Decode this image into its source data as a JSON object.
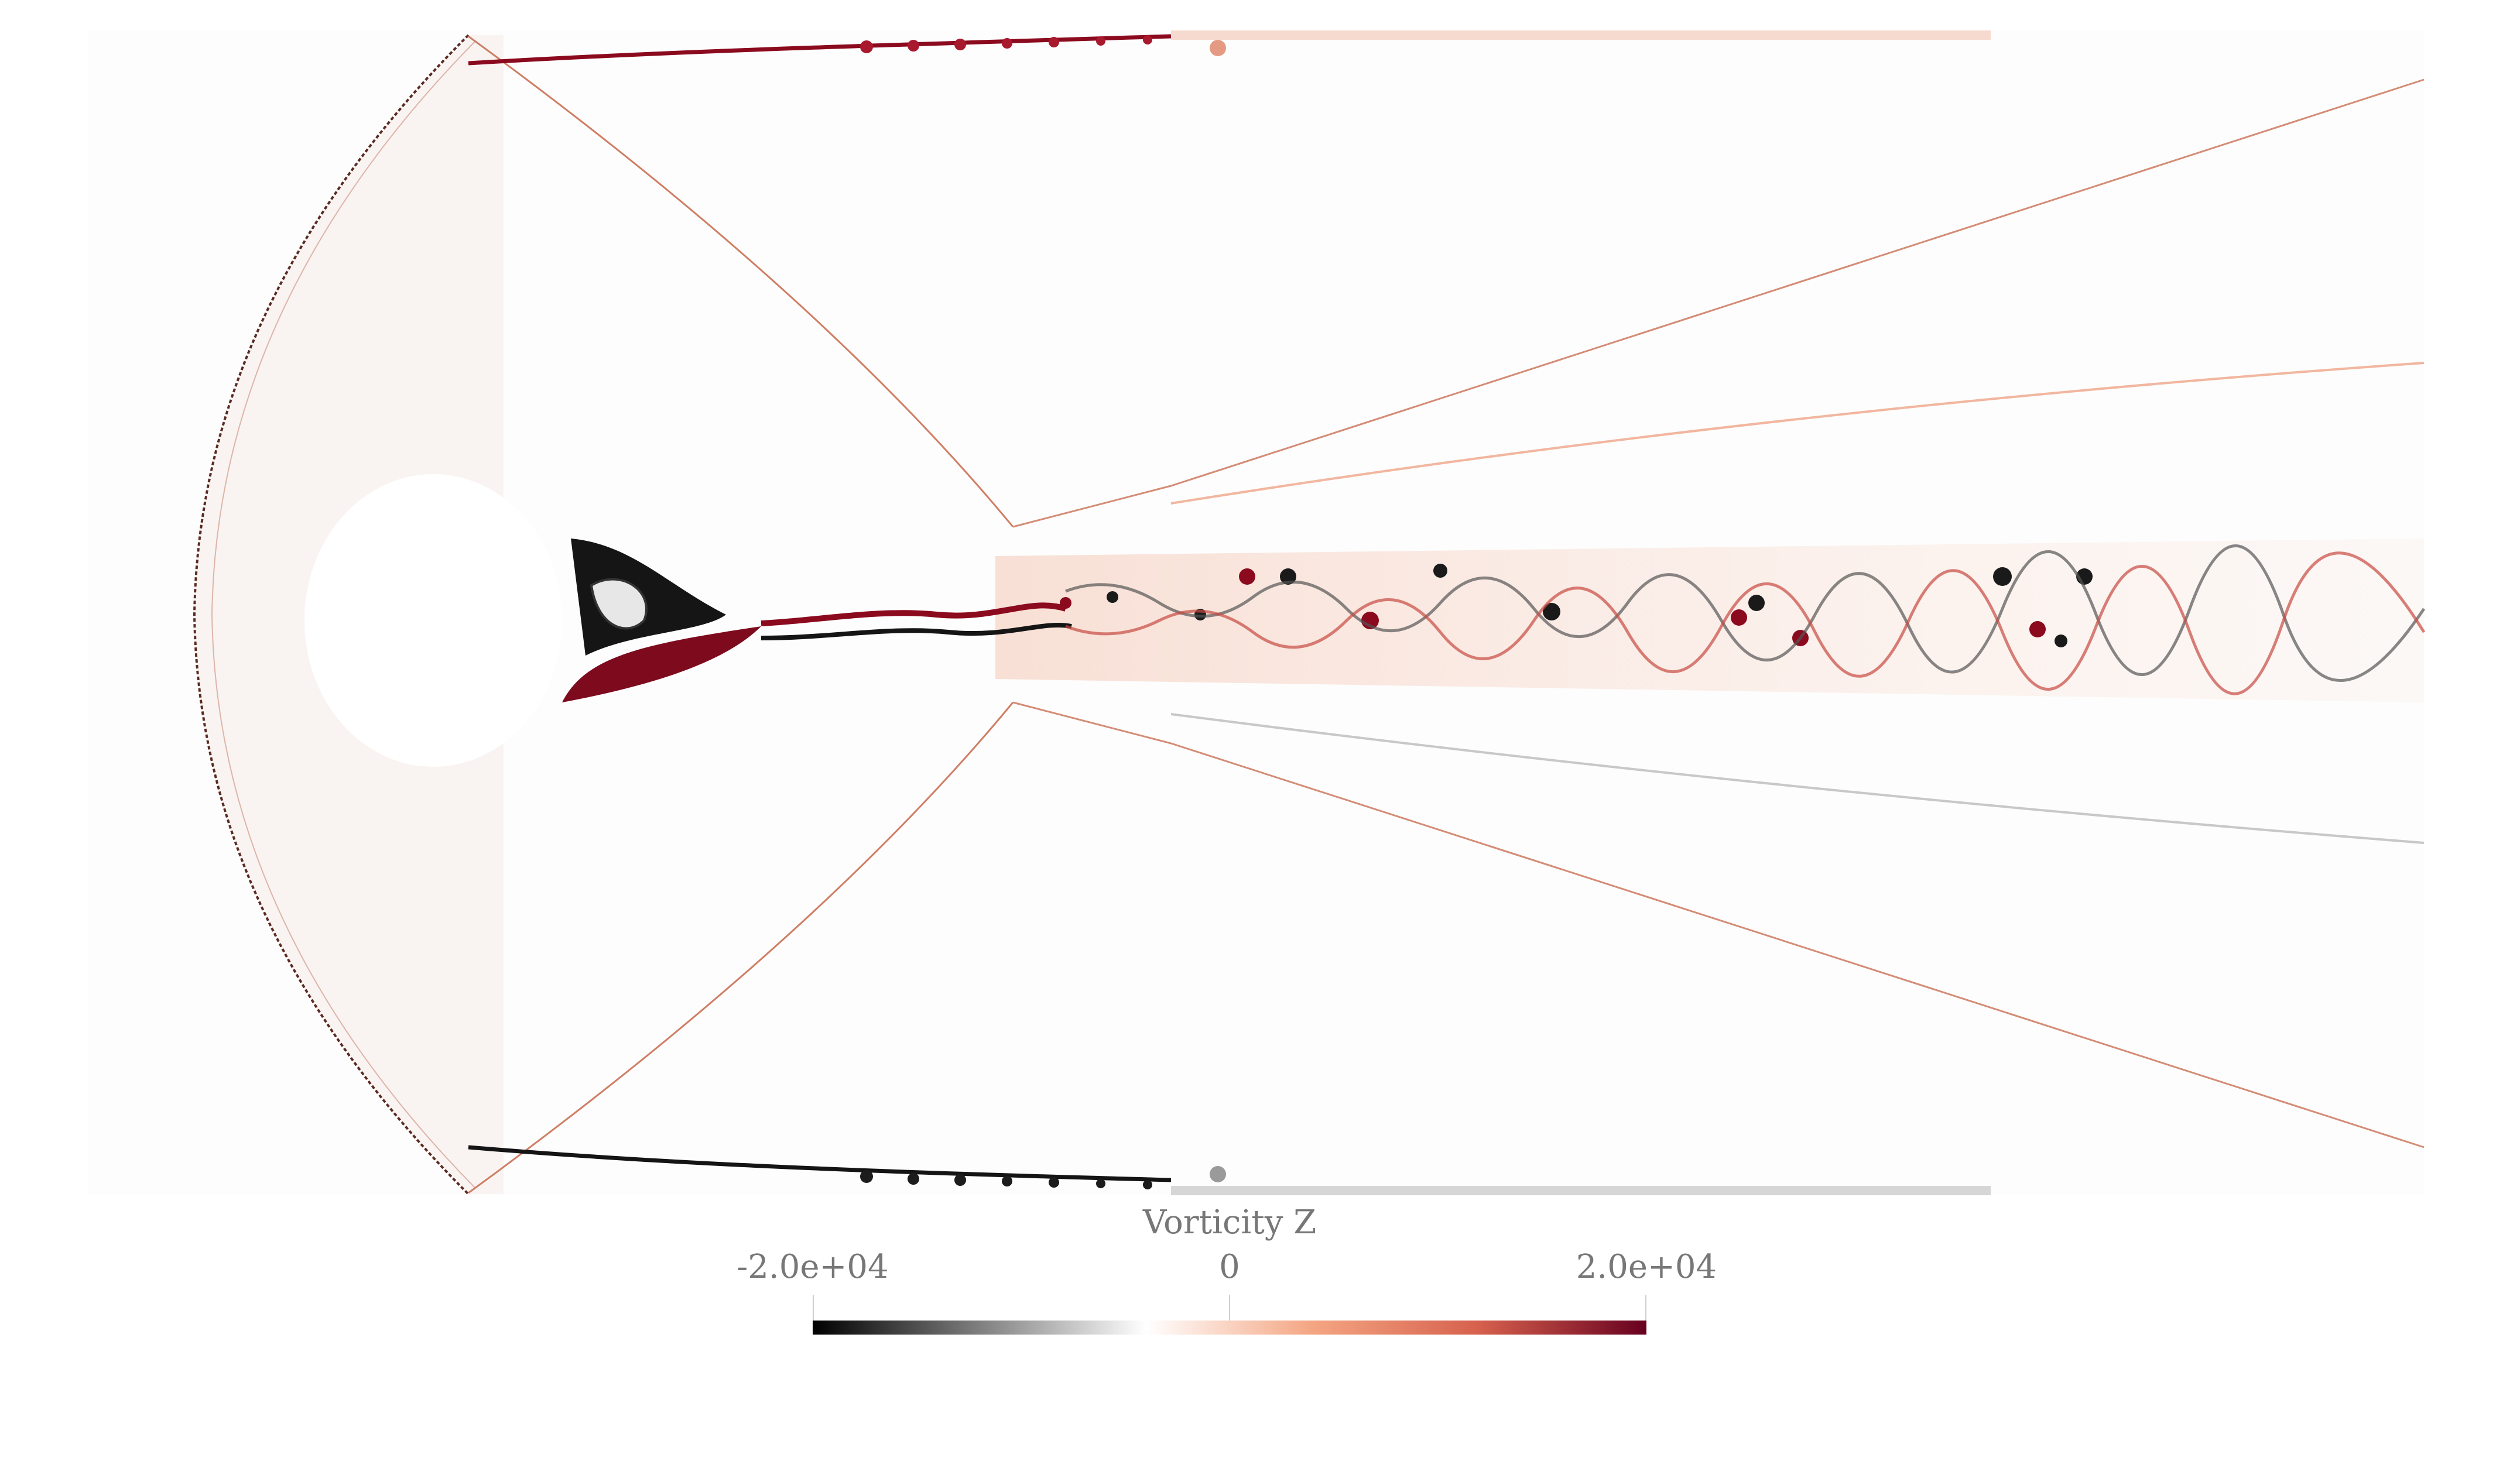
{
  "colorbar": {
    "title": "Vorticity Z",
    "min_label": "-2.0e+04",
    "mid_label": "0",
    "max_label": "2.0e+04",
    "colormap": [
      "#000000",
      "#7f7f7f",
      "#ffffff",
      "#f4a582",
      "#d6604d",
      "#67001f"
    ],
    "range": [
      -20000,
      20000
    ]
  },
  "colors": {
    "background": "#ffffff",
    "positive_vorticity": "#8b0a1e",
    "negative_vorticity": "#111111",
    "shock_line": "#c8745a",
    "weak_field": "#efc8b8"
  }
}
